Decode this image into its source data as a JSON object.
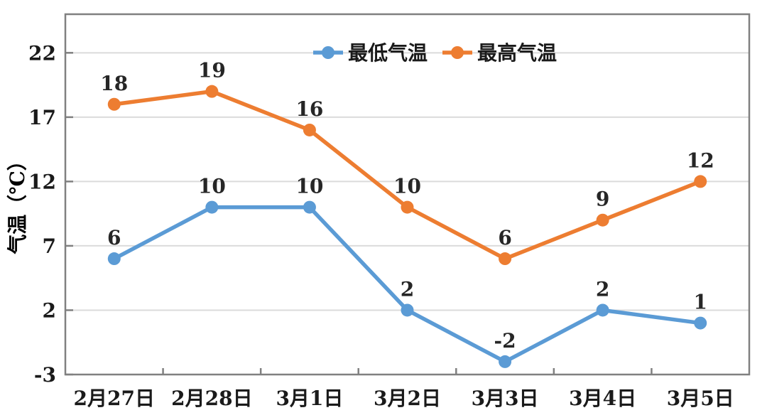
{
  "chart_data": {
    "type": "line",
    "title": "",
    "xlabel": "",
    "ylabel": "气温（℃）",
    "categories": [
      "2月27日",
      "2月28日",
      "3月1日",
      "3月2日",
      "3月3日",
      "3月4日",
      "3月5日"
    ],
    "series": [
      {
        "name": "最低气温",
        "color": "#5B9BD5",
        "values": [
          6,
          10,
          10,
          2,
          -2,
          2,
          1
        ]
      },
      {
        "name": "最高气温",
        "color": "#ED7D31",
        "values": [
          18,
          19,
          16,
          10,
          6,
          9,
          12
        ]
      }
    ],
    "yticks": [
      -3,
      2,
      7,
      12,
      17,
      22
    ],
    "ylim": [
      -3,
      25
    ],
    "grid": "horizontal",
    "legend_position": "top-center",
    "data_labels": true
  },
  "styles": {
    "background": "#FFFFFF",
    "grid_color": "#DBDBDB",
    "axis_color": "#808080",
    "tick_label_color": "#1A1A1A",
    "data_label_color": "#262626",
    "legend_text_color": "#1A1A1A"
  }
}
